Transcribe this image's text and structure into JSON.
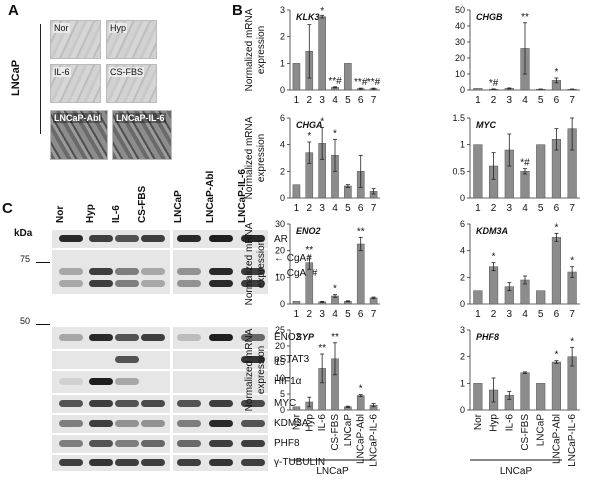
{
  "panel_a": {
    "letter": "A",
    "group_label": "LNCaP",
    "tiles": [
      "Nor",
      "Hyp",
      "IL-6",
      "CS-FBS",
      "LNCaP-Abl",
      "LNCaP-IL-6"
    ]
  },
  "panel_b": {
    "letter": "B"
  },
  "panel_c": {
    "letter": "C",
    "kda": "kDa",
    "mw_75": "75",
    "mw_50": "50",
    "columns": [
      "Nor",
      "Hyp",
      "IL-6",
      "CS-FBS",
      "LNCaP",
      "LNCaP-Abl",
      "LNCaP-IL-6"
    ],
    "rows": [
      "AR",
      "CgA#",
      "CgA##",
      "ENO2",
      "pSTAT3",
      "HIF1α",
      "MYC",
      "KDM3A",
      "PHF8",
      "γ-TUBULIN"
    ]
  },
  "ylabel": "Normalized mRNA expression",
  "x_tick_numbers": [
    "1",
    "2",
    "3",
    "4",
    "5",
    "6",
    "7"
  ],
  "x_tick_names": [
    "Nor",
    "Hyp",
    "IL-6",
    "CS-FBS",
    "LNCaP",
    "LNCaP-Abl",
    "LNCaP-IL-6"
  ],
  "group_label": "LNCaP",
  "colors": {
    "bar": "#8c8c8c",
    "bar_edge": "#555555",
    "axis": "#333333"
  },
  "chart_data": [
    {
      "type": "bar",
      "title": "KLK3",
      "categories": [
        "1",
        "2",
        "3",
        "4",
        "5",
        "6",
        "7"
      ],
      "values": [
        1.0,
        1.45,
        2.75,
        0.1,
        1.0,
        0.05,
        0.05
      ],
      "errors": [
        0,
        1.0,
        0.05,
        0.02,
        0,
        0.02,
        0.02
      ],
      "ylim": [
        0,
        3
      ],
      "yticks": [
        "0",
        "1",
        "2",
        "3"
      ],
      "ytick_values": [
        0,
        1,
        2,
        3
      ],
      "annotations": [
        "",
        "",
        "*",
        "**#",
        "",
        "**#",
        "**#"
      ]
    },
    {
      "type": "bar",
      "title": "CHGB",
      "categories": [
        "1",
        "2",
        "3",
        "4",
        "5",
        "6",
        "7"
      ],
      "values": [
        1.0,
        0.5,
        1.0,
        26,
        0.5,
        6,
        0.5
      ],
      "errors": [
        0,
        0.2,
        0.3,
        16,
        0.1,
        1.5,
        0.1
      ],
      "ylim": [
        0,
        50
      ],
      "yticks": [
        "0",
        "10",
        "20",
        "30",
        "40",
        "50"
      ],
      "ytick_values": [
        0,
        10,
        20,
        30,
        40,
        50
      ],
      "annotations": [
        "",
        "*#",
        "",
        "**",
        "",
        "*",
        ""
      ]
    },
    {
      "type": "bar",
      "title": "CHGA",
      "categories": [
        "1",
        "2",
        "3",
        "4",
        "5",
        "6",
        "7"
      ],
      "values": [
        1.0,
        3.4,
        4.1,
        3.2,
        0.9,
        2.0,
        0.5
      ],
      "errors": [
        0,
        0.8,
        1.2,
        1.2,
        0.1,
        1.2,
        0.2
      ],
      "ylim": [
        0,
        6
      ],
      "yticks": [
        "0",
        "2",
        "4",
        "6"
      ],
      "ytick_values": [
        0,
        2,
        4,
        6
      ],
      "annotations": [
        "",
        "*",
        "*",
        "*",
        "",
        "",
        ""
      ]
    },
    {
      "type": "bar",
      "title": "MYC",
      "categories": [
        "1",
        "2",
        "3",
        "4",
        "5",
        "6",
        "7"
      ],
      "values": [
        1.0,
        0.6,
        0.9,
        0.5,
        1.0,
        1.1,
        1.3
      ],
      "errors": [
        0,
        0.25,
        0.3,
        0.05,
        0,
        0.2,
        0.4
      ],
      "ylim": [
        0,
        1.5
      ],
      "yticks": [
        "0",
        "0.5",
        "1",
        "1.5"
      ],
      "ytick_values": [
        0,
        0.5,
        1,
        1.5
      ],
      "annotations": [
        "",
        "",
        "",
        "*#",
        "",
        "",
        ""
      ]
    },
    {
      "type": "bar",
      "title": "ENO2",
      "categories": [
        "1",
        "2",
        "3",
        "4",
        "5",
        "6",
        "7"
      ],
      "values": [
        1.0,
        15.5,
        0.8,
        3.0,
        1.0,
        22.5,
        2.3
      ],
      "errors": [
        0,
        2.5,
        0.2,
        0.5,
        0.2,
        2.5,
        0.3
      ],
      "ylim": [
        0,
        30
      ],
      "yticks": [
        "0",
        "10",
        "20",
        "30"
      ],
      "ytick_values": [
        0,
        10,
        20,
        30
      ],
      "annotations": [
        "",
        "**",
        "",
        "*",
        "",
        "**",
        ""
      ]
    },
    {
      "type": "bar",
      "title": "KDM3A",
      "categories": [
        "1",
        "2",
        "3",
        "4",
        "5",
        "6",
        "7"
      ],
      "values": [
        1.0,
        2.8,
        1.3,
        1.8,
        1.0,
        5.0,
        2.4
      ],
      "errors": [
        0,
        0.3,
        0.3,
        0.3,
        0,
        0.3,
        0.4
      ],
      "ylim": [
        0,
        6
      ],
      "yticks": [
        "0",
        "2",
        "4",
        "6"
      ],
      "ytick_values": [
        0,
        2,
        4,
        6
      ],
      "annotations": [
        "",
        "*",
        "",
        "",
        "",
        "*",
        "*"
      ]
    },
    {
      "type": "bar",
      "title": "SYP",
      "categories": [
        "Nor",
        "Hyp",
        "IL-6",
        "CS-FBS",
        "LNCaP",
        "LNCaP-Abl",
        "LNCaP-IL-6"
      ],
      "values": [
        1.0,
        2.5,
        13.0,
        16.0,
        1.0,
        4.5,
        1.5
      ],
      "errors": [
        0,
        1.5,
        4.5,
        5.0,
        0.2,
        0.3,
        0.5
      ],
      "ylim": [
        0,
        25
      ],
      "yticks": [
        "0",
        "5",
        "10",
        "15",
        "20",
        "25"
      ],
      "ytick_values": [
        0,
        5,
        10,
        15,
        20,
        25
      ],
      "annotations": [
        "",
        "",
        "**",
        "**",
        "",
        "*",
        ""
      ]
    },
    {
      "type": "bar",
      "title": "PHF8",
      "categories": [
        "Nor",
        "Hyp",
        "IL-6",
        "CS-FBS",
        "LNCaP",
        "LNCaP-Abl",
        "LNCaP-IL-6"
      ],
      "values": [
        1.0,
        0.75,
        0.55,
        1.4,
        1.0,
        1.8,
        2.0
      ],
      "errors": [
        0,
        0.45,
        0.15,
        0.03,
        0,
        0.05,
        0.35
      ],
      "ylim": [
        0,
        3
      ],
      "yticks": [
        "0",
        "1",
        "2",
        "3"
      ],
      "ytick_values": [
        0,
        1,
        2,
        3
      ],
      "annotations": [
        "",
        "",
        "",
        "",
        "",
        "*",
        "*"
      ]
    }
  ]
}
